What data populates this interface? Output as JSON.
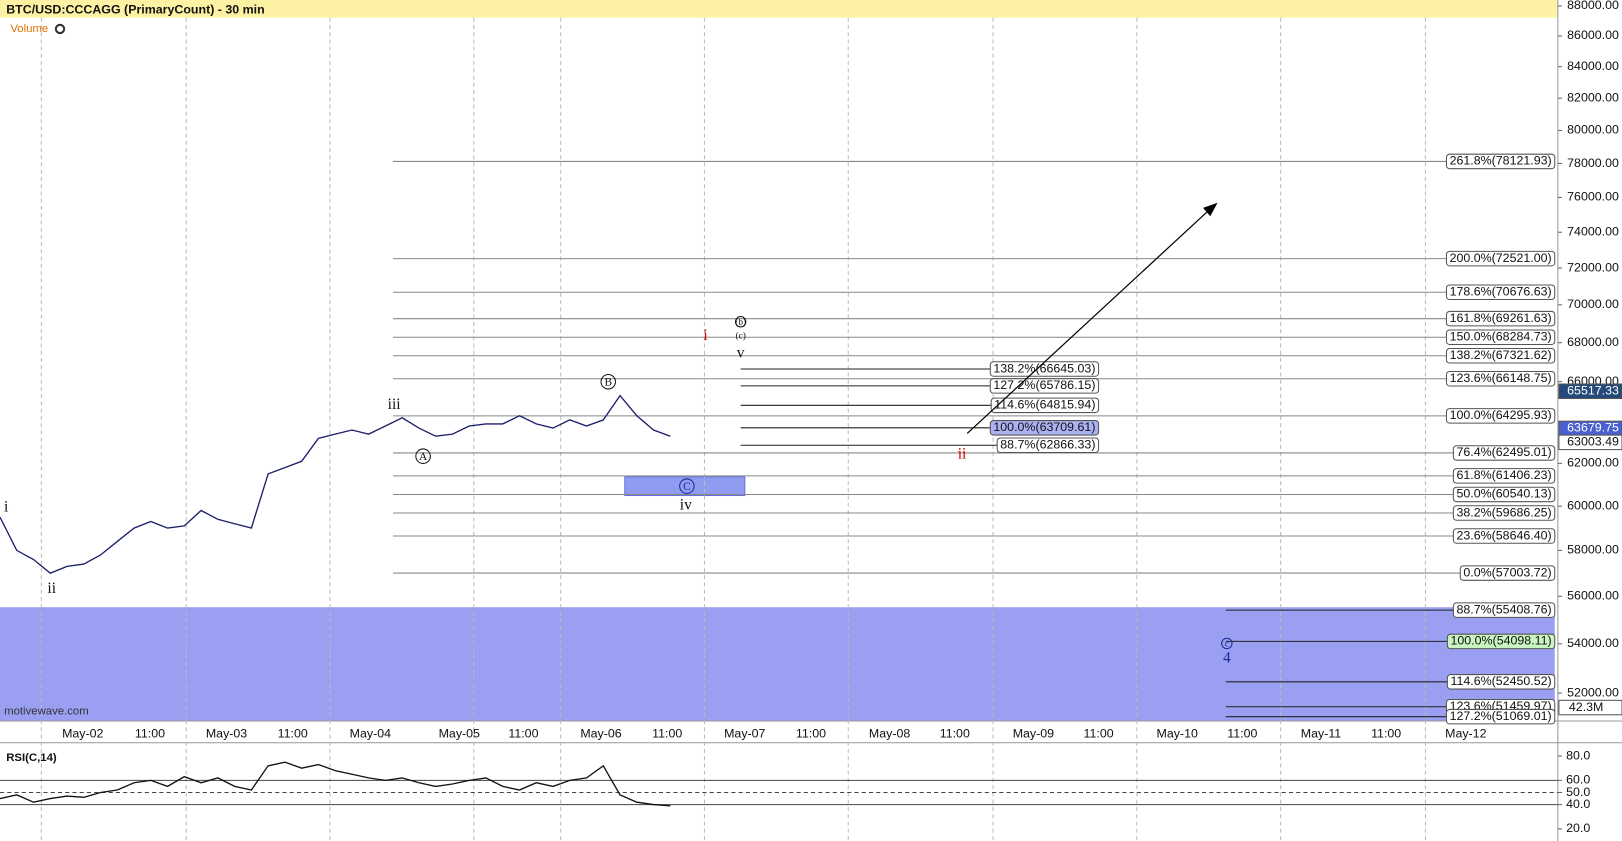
{
  "chart_data": [
    {
      "type": "line",
      "title": "BTC/USD:CCCAGG (PrimaryCount) - 30 min",
      "volume_label": "Volume",
      "watermark": "motivewave.com",
      "log_scale": true,
      "ylim": [
        50900,
        88400
      ],
      "color": "#1c1f6b",
      "values": [
        59500,
        58000,
        57600,
        57000,
        57300,
        57400,
        57800,
        58400,
        59000,
        59300,
        59000,
        59100,
        59800,
        59400,
        59200,
        59000,
        61500,
        61800,
        62100,
        63200,
        63400,
        63600,
        63400,
        63800,
        64200,
        63700,
        63300,
        63400,
        63800,
        63900,
        63900,
        64300,
        63900,
        63700,
        64100,
        63800,
        64100,
        65300,
        64300,
        63600,
        63300
      ],
      "yticks": [
        {
          "value": 88000,
          "label": "88000.00"
        },
        {
          "value": 86000,
          "label": "86000.00"
        },
        {
          "value": 84000,
          "label": "84000.00"
        },
        {
          "value": 82000,
          "label": "82000.00"
        },
        {
          "value": 80000,
          "label": "80000.00"
        },
        {
          "value": 78000,
          "label": "78000.00"
        },
        {
          "value": 76000,
          "label": "76000.00"
        },
        {
          "value": 74000,
          "label": "74000.00"
        },
        {
          "value": 72000,
          "label": "72000.00"
        },
        {
          "value": 70000,
          "label": "70000.00"
        },
        {
          "value": 68000,
          "label": "68000.00"
        },
        {
          "value": 66000,
          "label": "66000.00"
        },
        {
          "value": 62000,
          "label": "62000.00"
        },
        {
          "value": 60000,
          "label": "60000.00"
        },
        {
          "value": 58000,
          "label": "58000.00"
        },
        {
          "value": 56000,
          "label": "56000.00"
        },
        {
          "value": 54000,
          "label": "54000.00"
        },
        {
          "value": 52000,
          "label": "52000.00"
        }
      ],
      "x_labels": [
        "May-02",
        "11:00",
        "May-03",
        "11:00",
        "May-04",
        "May-05",
        "11:00",
        "May-06",
        "11:00",
        "May-07",
        "11:00",
        "May-08",
        "11:00",
        "May-09",
        "11:00",
        "May-10",
        "11:00",
        "May-11",
        "11:00",
        "May-12"
      ],
      "price_tags": [
        {
          "value": 65517.33,
          "label": "65517.33",
          "color": "#234a7a"
        },
        {
          "value": 63679.75,
          "label": "63679.75",
          "color": "#4a5fd0"
        },
        {
          "value": 63003.49,
          "label": "63003.49",
          "color": "#ffffff"
        }
      ],
      "volume_tag": "42.3M",
      "fib_groups": [
        {
          "levels": [
            {
              "value": 78121.93,
              "label": "261.8%(78121.93)"
            },
            {
              "value": 72521.0,
              "label": "200.0%(72521.00)"
            },
            {
              "value": 70676.63,
              "label": "178.6%(70676.63)"
            },
            {
              "value": 69261.63,
              "label": "161.8%(69261.63)"
            },
            {
              "value": 68284.73,
              "label": "150.0%(68284.73)"
            },
            {
              "value": 67321.62,
              "label": "138.2%(67321.62)"
            },
            {
              "value": 66148.75,
              "label": "123.6%(66148.75)"
            },
            {
              "value": 64295.93,
              "label": "100.0%(64295.93)"
            },
            {
              "value": 62495.01,
              "label": "76.4%(62495.01)"
            },
            {
              "value": 61406.23,
              "label": "61.8%(61406.23)"
            },
            {
              "value": 60540.13,
              "label": "50.0%(60540.13)"
            },
            {
              "value": 59686.25,
              "label": "38.2%(59686.25)"
            },
            {
              "value": 58646.4,
              "label": "23.6%(58646.40)"
            },
            {
              "value": 57003.72,
              "label": "0.0%(57003.72)"
            }
          ]
        },
        {
          "levels": [
            {
              "value": 66645.03,
              "label": "138.2%(66645.03)"
            },
            {
              "value": 65786.15,
              "label": "127.2%(65786.15)"
            },
            {
              "value": 64815.94,
              "label": "114.6%(64815.94)"
            },
            {
              "value": 63709.61,
              "label": "100.0%(63709.61)",
              "fill": "#aab2f2"
            },
            {
              "value": 62866.33,
              "label": "88.7%(62866.33)"
            }
          ]
        },
        {
          "levels": [
            {
              "value": 55408.76,
              "label": "88.7%(55408.76)"
            },
            {
              "value": 54098.11,
              "label": "100.0%(54098.11)",
              "fill": "#c8f5c0"
            },
            {
              "value": 52450.52,
              "label": "114.6%(52450.52)"
            },
            {
              "value": 51459.97,
              "label": "123.6%(51459.97)"
            },
            {
              "value": 51069.01,
              "label": "127.2%(51069.01)"
            }
          ]
        }
      ],
      "annotations": [
        "i",
        "ii",
        "iii",
        "A",
        "B",
        "C",
        "iv",
        "i",
        "(b)",
        "(c)",
        "v",
        "ii",
        "c",
        "4"
      ]
    },
    {
      "type": "line",
      "title": "RSI(C,14)",
      "ylim": [
        10,
        91
      ],
      "color": "#111111",
      "values": [
        45,
        48,
        42,
        45,
        47,
        46,
        50,
        52,
        58,
        60,
        55,
        63,
        58,
        62,
        55,
        52,
        72,
        75,
        70,
        73,
        68,
        65,
        62,
        60,
        62,
        58,
        55,
        57,
        60,
        62,
        55,
        52,
        58,
        55,
        60,
        62,
        72,
        48,
        42,
        40,
        39
      ],
      "yticks": [
        {
          "value": 80,
          "label": "80.0"
        },
        {
          "value": 60,
          "label": "60.0"
        },
        {
          "value": 50,
          "label": "50.0"
        },
        {
          "value": 40,
          "label": "40.0"
        },
        {
          "value": 20,
          "label": "20.0"
        }
      ]
    }
  ]
}
